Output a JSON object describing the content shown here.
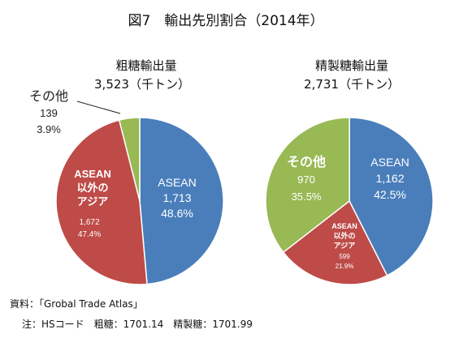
{
  "title": "図7　輸出先別割合（2014年）",
  "source_note": "資料：「Grobal Trade Atlas」",
  "hs_note": "注：HSコード　粗糖：1701.14　精製糖：1701.99",
  "chart_data": [
    {
      "type": "pie",
      "title": "粗糖輸出量",
      "subtitle": "3,523（千トン）",
      "start": "12 o'clock, clockwise",
      "slices": [
        {
          "name": "ASEAN",
          "value": 1713,
          "percent": "48.6%",
          "value_label": "1,713",
          "color": "#4a7ebb"
        },
        {
          "name": "ASEAN\n以外の\nアジア",
          "value": 1672,
          "percent": "47.4%",
          "value_label": "1,672",
          "color": "#be4b48"
        },
        {
          "name": "その他",
          "value": 139,
          "percent": "3.9%",
          "value_label": "139",
          "color": "#98b954"
        }
      ]
    },
    {
      "type": "pie",
      "title": "精製糖輸出量",
      "subtitle": "2,731（千トン）",
      "start": "12 o'clock, clockwise",
      "slices": [
        {
          "name": "ASEAN",
          "value": 1162,
          "percent": "42.5%",
          "value_label": "1,162",
          "color": "#4a7ebb"
        },
        {
          "name": "ASEAN\n以外の\nアジア",
          "value": 599,
          "percent": "21.9%",
          "value_label": "599",
          "color": "#be4b48"
        },
        {
          "name": "その他",
          "value": 970,
          "percent": "35.5%",
          "value_label": "970",
          "color": "#98b954"
        }
      ]
    }
  ]
}
